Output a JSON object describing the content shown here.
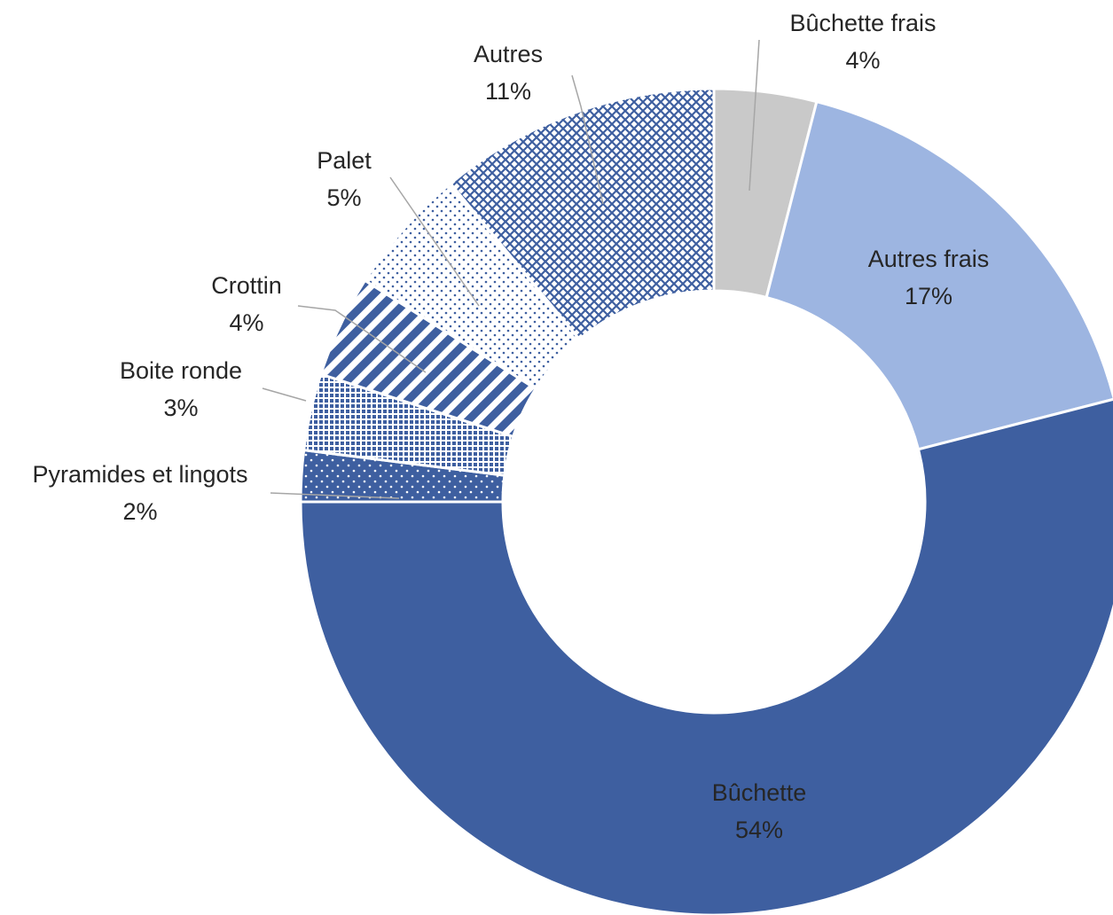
{
  "chart_data": {
    "type": "donut",
    "categories": [
      "Bûchette frais",
      "Autres frais",
      "Bûchette",
      "Pyramides et lingots",
      "Boite ronde",
      "Crottin",
      "Palet",
      "Autres"
    ],
    "values": [
      4,
      17,
      54,
      2,
      3,
      4,
      5,
      11
    ],
    "value_labels": [
      "4%",
      "17%",
      "54%",
      "2%",
      "3%",
      "4%",
      "5%",
      "11%"
    ],
    "colors": [
      "#c9c9c9",
      "#9db5e1",
      "#3e5fa0",
      "#3e5fa0",
      "#3e5fa0",
      "#3e5fa0",
      "#3e5fa0",
      "#3e5fa0"
    ],
    "patterns": [
      null,
      null,
      null,
      "dots",
      "grid",
      "stripes",
      "dots-sparse",
      "crosshatch"
    ]
  }
}
